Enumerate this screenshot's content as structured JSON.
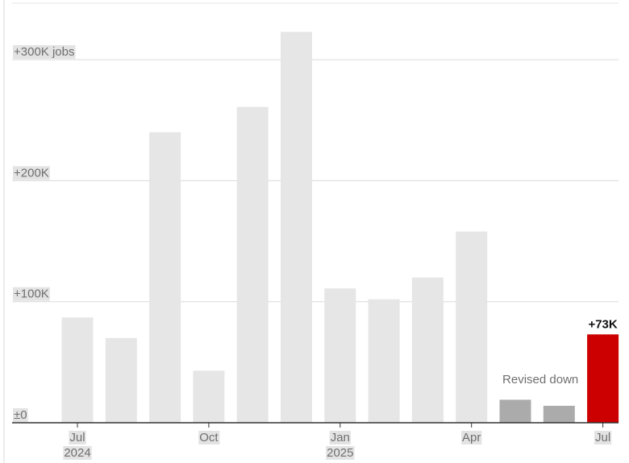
{
  "chart_data": {
    "type": "bar",
    "title": "",
    "xlabel": "",
    "ylabel": "",
    "categories": [
      "Jul 2024",
      "Aug 2024",
      "Sep 2024",
      "Oct 2024",
      "Nov 2024",
      "Dec 2024",
      "Jan 2025",
      "Feb 2025",
      "Mar 2025",
      "Apr 2025",
      "May 2025",
      "Jun 2025",
      "Jul 2025"
    ],
    "values": [
      87,
      70,
      240,
      43,
      261,
      323,
      111,
      102,
      120,
      158,
      19,
      14,
      73
    ],
    "bar_status": [
      "normal",
      "normal",
      "normal",
      "normal",
      "normal",
      "normal",
      "normal",
      "normal",
      "normal",
      "normal",
      "revised",
      "revised",
      "latest"
    ],
    "ylim": [
      0,
      350
    ],
    "y_ticks": [
      {
        "value": 0,
        "label": "±0"
      },
      {
        "value": 100,
        "label": "+100K"
      },
      {
        "value": 200,
        "label": "+200K"
      },
      {
        "value": 300,
        "label": "+300K jobs"
      }
    ],
    "x_ticks": [
      {
        "index": 0,
        "month": "Jul",
        "year": "2024"
      },
      {
        "index": 3,
        "month": "Oct",
        "year": ""
      },
      {
        "index": 6,
        "month": "Jan",
        "year": "2025"
      },
      {
        "index": 9,
        "month": "Apr",
        "year": ""
      },
      {
        "index": 12,
        "month": "Jul",
        "year": ""
      }
    ],
    "annotations": [
      {
        "text": "Revised down",
        "target_index": 11
      }
    ],
    "value_labels": [
      {
        "index": 12,
        "text": "+73K"
      }
    ],
    "colors": {
      "normal": "#e6e6e6",
      "revised": "#ababab",
      "latest": "#cc0000",
      "gridline": "#d9d9d9",
      "axis": "#333333",
      "label_bg": "#e3e3e3"
    },
    "grid": true
  }
}
